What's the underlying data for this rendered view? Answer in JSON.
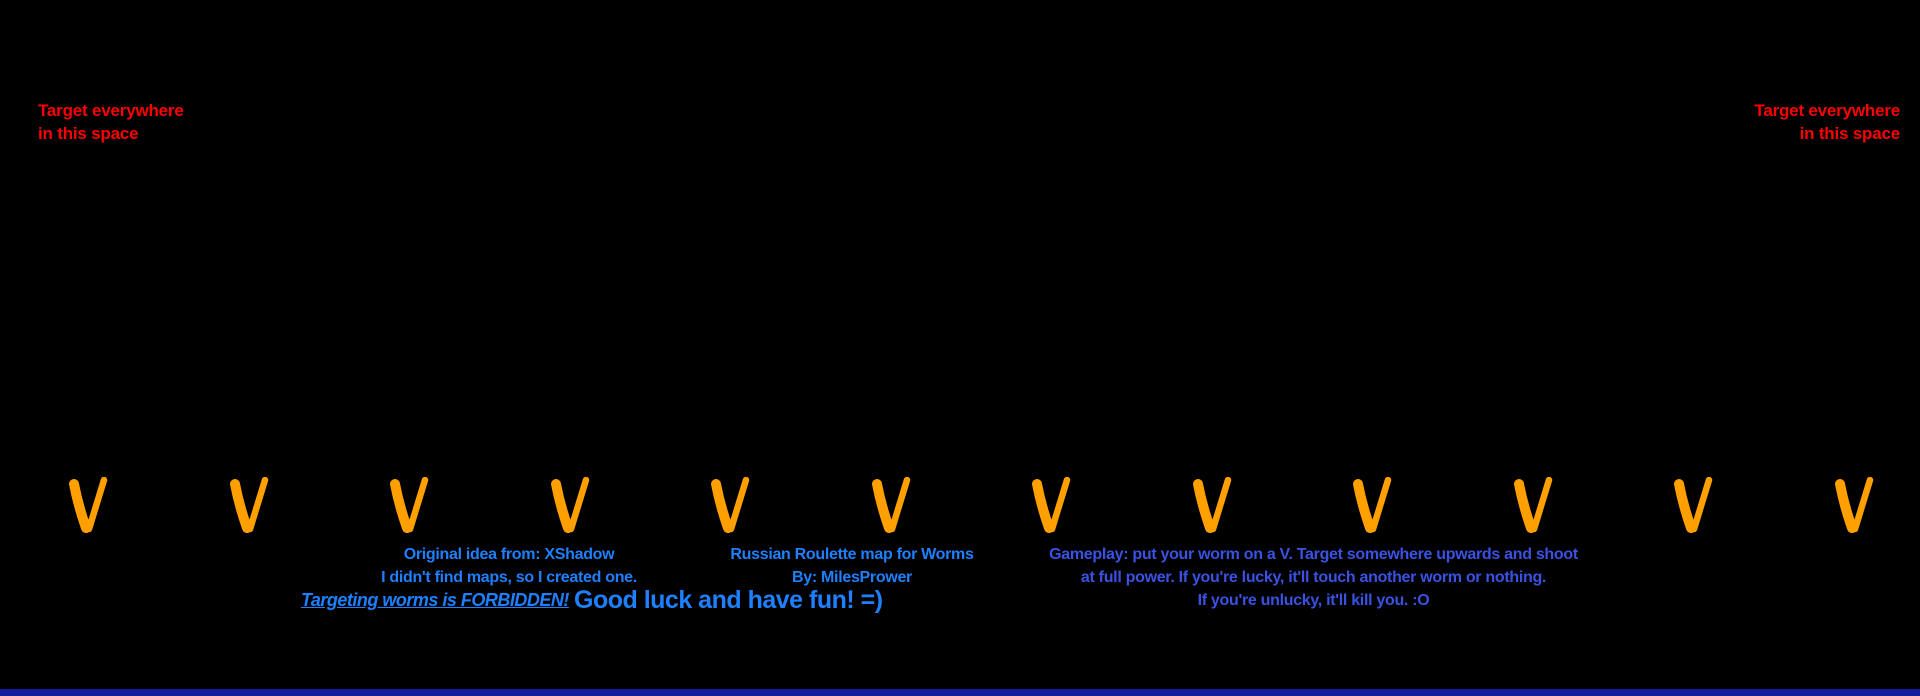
{
  "colors": {
    "background": "#000000",
    "target_red": "#FF0000",
    "v_orange": "#FF9F00",
    "credit_blue": "#1E80FF",
    "gameplay_blue": "#3A52E4",
    "water_blue": "#121E9B"
  },
  "target_notes": {
    "left": {
      "line1": "Target everywhere",
      "line2": "in this space"
    },
    "right": {
      "line1": "Target everywhere",
      "line2": "in this space"
    }
  },
  "v_row": {
    "count": 12,
    "glyph": "V"
  },
  "credits": {
    "line1": "Original idea from: XShadow",
    "line2": "I didn't find maps, so I created one.",
    "forbidden": "Targeting worms is FORBIDDEN!",
    "good_luck": "Good luck and have fun! =)"
  },
  "title_block": {
    "line1": "Russian Roulette map for Worms",
    "line2": "By: MilesPrower"
  },
  "gameplay": {
    "line1": "Gameplay: put your worm on a V. Target somewhere upwards and shoot",
    "line2": "at full power. If you're lucky, it'll touch another worm or nothing.",
    "line3": "If you're unlucky, it'll kill you. :O"
  }
}
